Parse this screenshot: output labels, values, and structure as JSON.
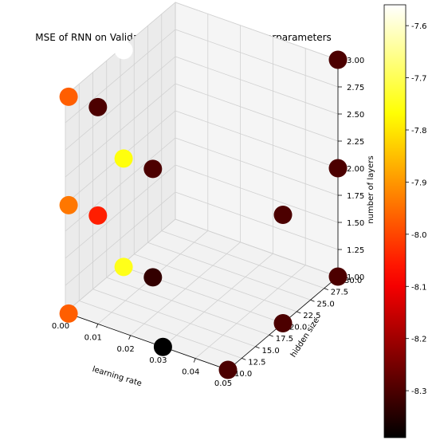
{
  "chart_data": {
    "type": "scatter",
    "projection": "3d",
    "title": "MSE of RNN on Validation Set with Different Hyperparameters",
    "xlabel": "learning rate",
    "ylabel": "hidden size",
    "zlabel": "number of layers",
    "xlim": [
      0.0,
      0.05
    ],
    "ylim": [
      10,
      30
    ],
    "zlim": [
      1.0,
      3.0
    ],
    "x_ticks": [
      "0.00",
      "0.01",
      "0.02",
      "0.03",
      "0.04",
      "0.05"
    ],
    "y_ticks": [
      "10.0",
      "12.5",
      "15.0",
      "17.5",
      "20.0",
      "22.5",
      "25.0",
      "27.5",
      "30.0"
    ],
    "z_ticks": [
      "1.00",
      "1.25",
      "1.50",
      "1.75",
      "2.00",
      "2.25",
      "2.50",
      "2.75",
      "3.00"
    ],
    "grid": true,
    "colormap": "hot",
    "colorbar": {
      "vmin": -8.39,
      "vmax": -7.56,
      "ticks": [
        "-7.6",
        "-7.7",
        "-7.8",
        "-7.9",
        "-8.0",
        "-8.1",
        "-8.2",
        "-8.3"
      ]
    },
    "points": [
      {
        "x": 0.001,
        "y": 10,
        "z": 1,
        "c": -7.97
      },
      {
        "x": 0.001,
        "y": 10,
        "z": 2,
        "c": -7.94
      },
      {
        "x": 0.001,
        "y": 10,
        "z": 3,
        "c": -7.97
      },
      {
        "x": 0.001,
        "y": 20,
        "z": 1,
        "c": -7.75
      },
      {
        "x": 0.001,
        "y": 20,
        "z": 2,
        "c": -7.76
      },
      {
        "x": 0.001,
        "y": 20,
        "z": 3,
        "c": -7.56
      },
      {
        "x": 0.01,
        "y": 10,
        "z": 2,
        "c": -8.05
      },
      {
        "x": 0.01,
        "y": 10,
        "z": 3,
        "c": -8.3
      },
      {
        "x": 0.01,
        "y": 20,
        "z": 2,
        "c": -8.3
      },
      {
        "x": 0.01,
        "y": 20,
        "z": 1,
        "c": -8.33
      },
      {
        "x": 0.05,
        "y": 10,
        "z": 1,
        "c": -8.3
      },
      {
        "x": 0.05,
        "y": 20,
        "z": 1,
        "c": -8.3
      },
      {
        "x": 0.05,
        "y": 20,
        "z": 2,
        "c": -8.3
      },
      {
        "x": 0.05,
        "y": 30,
        "z": 1,
        "c": -8.3
      },
      {
        "x": 0.05,
        "y": 30,
        "z": 2,
        "c": -8.3
      },
      {
        "x": 0.05,
        "y": 30,
        "z": 3,
        "c": -8.3
      },
      {
        "x": 0.03,
        "y": 10,
        "z": 1,
        "c": -8.39
      }
    ]
  }
}
